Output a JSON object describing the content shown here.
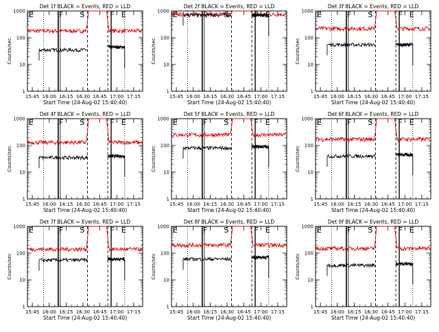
{
  "figure": {
    "xlabel": "Start Time (24-Aug-02 15:40:40)",
    "ylabel": "Counts/sec",
    "colors": {
      "events": "#000000",
      "lld": "#dd0000",
      "axis": "#000000"
    }
  },
  "chart_data": [
    {
      "type": "line",
      "title": "Det 1f BLACK = Events, RED = LLD",
      "xlabel": "Start Time (24-Aug-02 15:40:40)",
      "ylabel": "Counts/sec",
      "ylog": true,
      "ylim": [
        1,
        1000
      ],
      "xlim": [
        "15:40:40",
        "17:23:00"
      ],
      "x_ticks": [
        "15:45",
        "16:00",
        "16:15",
        "16:30",
        "16:45",
        "17:00",
        "17:15"
      ],
      "y_ticks": [
        "1",
        "10",
        "100",
        "1000"
      ],
      "markers": [
        {
          "label": "E",
          "time": "15:40:40"
        },
        {
          "label": "F",
          "time": "16:08"
        },
        {
          "label": "S",
          "time": "16:32"
        },
        {
          "label": "F",
          "time": "16:52"
        },
        {
          "label": "E",
          "time": "17:03"
        }
      ],
      "series": [
        {
          "name": "Events",
          "color": "#000000",
          "level": 35,
          "start": "15:51",
          "end": "16:34",
          "resume": "16:52",
          "resume_level": 45,
          "resume_end": "17:07"
        },
        {
          "name": "LLD",
          "color": "#dd0000",
          "level": 180,
          "peak": 1000
        }
      ]
    },
    {
      "type": "line",
      "title": "Det 2f BLACK = Events, RED = LLD",
      "xlabel": "Start Time (24-Aug-02 15:40:40)",
      "ylabel": "Counts/sec",
      "ylog": true,
      "ylim": [
        1,
        1000
      ],
      "xlim": [
        "15:40:40",
        "17:23:00"
      ],
      "x_ticks": [
        "15:45",
        "16:00",
        "16:15",
        "16:30",
        "16:45",
        "17:00",
        "17:15"
      ],
      "y_ticks": [
        "1",
        "10",
        "100",
        "1000"
      ],
      "markers": [
        {
          "label": "E",
          "time": "15:40:40"
        },
        {
          "label": "F",
          "time": "16:08"
        },
        {
          "label": "S",
          "time": "16:32"
        },
        {
          "label": "F",
          "time": "16:52"
        },
        {
          "label": "E",
          "time": "17:03"
        }
      ],
      "series": [
        {
          "name": "Events",
          "color": "#000000",
          "level": 700,
          "start": "15:51",
          "end": "16:34",
          "resume": "16:52",
          "resume_level": 700,
          "resume_end": "17:07"
        },
        {
          "name": "LLD",
          "color": "#dd0000",
          "level": 750,
          "peak": 1000
        }
      ]
    },
    {
      "type": "line",
      "title": "Det 3f BLACK = Events, RED = LLD",
      "xlabel": "Start Time (24-Aug-02 15:40:40)",
      "ylabel": "Counts/sec",
      "ylog": true,
      "ylim": [
        1,
        1000
      ],
      "xlim": [
        "15:40:40",
        "17:23:00"
      ],
      "x_ticks": [
        "15:45",
        "16:00",
        "16:15",
        "16:30",
        "16:45",
        "17:00",
        "17:15"
      ],
      "y_ticks": [
        "1",
        "10",
        "100",
        "1000"
      ],
      "markers": [
        {
          "label": "E",
          "time": "15:40:40"
        },
        {
          "label": "F",
          "time": "16:08"
        },
        {
          "label": "S",
          "time": "16:32"
        },
        {
          "label": "F",
          "time": "16:52"
        },
        {
          "label": "E",
          "time": "17:03"
        }
      ],
      "series": [
        {
          "name": "Events",
          "color": "#000000",
          "level": 55,
          "start": "15:51",
          "end": "16:34",
          "resume": "16:52",
          "resume_level": 55,
          "resume_end": "17:07"
        },
        {
          "name": "LLD",
          "color": "#dd0000",
          "level": 220,
          "peak": 1000
        }
      ]
    },
    {
      "type": "line",
      "title": "Det 4f BLACK = Events, RED = LLD",
      "xlabel": "Start Time (24-Aug-02 15:40:40)",
      "ylabel": "Counts/sec",
      "ylog": true,
      "ylim": [
        1,
        1000
      ],
      "xlim": [
        "15:40:40",
        "17:23:00"
      ],
      "x_ticks": [
        "15:45",
        "16:00",
        "16:15",
        "16:30",
        "16:45",
        "17:00",
        "17:15"
      ],
      "y_ticks": [
        "1",
        "10",
        "100",
        "1000"
      ],
      "markers": [
        {
          "label": "E",
          "time": "15:40:40"
        },
        {
          "label": "F",
          "time": "16:08"
        },
        {
          "label": "S",
          "time": "16:32"
        },
        {
          "label": "F",
          "time": "16:52"
        },
        {
          "label": "E",
          "time": "17:03"
        }
      ],
      "series": [
        {
          "name": "Events",
          "color": "#000000",
          "level": 35,
          "start": "15:51",
          "end": "16:34",
          "resume": "16:52",
          "resume_level": 40,
          "resume_end": "17:07"
        },
        {
          "name": "LLD",
          "color": "#dd0000",
          "level": 130,
          "peak": 1000
        }
      ]
    },
    {
      "type": "line",
      "title": "Det 5f BLACK = Events, RED = LLD",
      "xlabel": "Start Time (24-Aug-02 15:40:40)",
      "ylabel": "Counts/sec",
      "ylog": true,
      "ylim": [
        1,
        1000
      ],
      "xlim": [
        "15:40:40",
        "17:23:00"
      ],
      "x_ticks": [
        "15:45",
        "16:00",
        "16:15",
        "16:30",
        "16:45",
        "17:00",
        "17:15"
      ],
      "y_ticks": [
        "1",
        "10",
        "100",
        "1000"
      ],
      "markers": [
        {
          "label": "E",
          "time": "15:40:40"
        },
        {
          "label": "F",
          "time": "16:08"
        },
        {
          "label": "S",
          "time": "16:32"
        },
        {
          "label": "F",
          "time": "16:52"
        },
        {
          "label": "E",
          "time": "17:03"
        }
      ],
      "series": [
        {
          "name": "Events",
          "color": "#000000",
          "level": 80,
          "start": "15:51",
          "end": "16:34",
          "resume": "16:52",
          "resume_level": 90,
          "resume_end": "17:07"
        },
        {
          "name": "LLD",
          "color": "#dd0000",
          "level": 250,
          "peak": 1000
        }
      ]
    },
    {
      "type": "line",
      "title": "Det 6f BLACK = Events, RED = LLD",
      "xlabel": "Start Time (24-Aug-02 15:40:40)",
      "ylabel": "Counts/sec",
      "ylog": true,
      "ylim": [
        1,
        1000
      ],
      "xlim": [
        "15:40:40",
        "17:23:00"
      ],
      "x_ticks": [
        "15:45",
        "16:00",
        "16:15",
        "16:30",
        "16:45",
        "17:00",
        "17:15"
      ],
      "y_ticks": [
        "1",
        "10",
        "100",
        "1000"
      ],
      "markers": [
        {
          "label": "E",
          "time": "15:40:40"
        },
        {
          "label": "F",
          "time": "16:08"
        },
        {
          "label": "S",
          "time": "16:32"
        },
        {
          "label": "F",
          "time": "16:52"
        },
        {
          "label": "E",
          "time": "17:03"
        }
      ],
      "series": [
        {
          "name": "Events",
          "color": "#000000",
          "level": 40,
          "start": "15:51",
          "end": "16:34",
          "resume": "16:52",
          "resume_level": 45,
          "resume_end": "17:07"
        },
        {
          "name": "LLD",
          "color": "#dd0000",
          "level": 170,
          "peak": 1000
        }
      ]
    },
    {
      "type": "line",
      "title": "Det 7f BLACK = Events, RED = LLD",
      "xlabel": "Start Time (24-Aug-02 15:40:40)",
      "ylabel": "Counts/sec",
      "ylog": true,
      "ylim": [
        1,
        1000
      ],
      "xlim": [
        "15:40:40",
        "17:23:00"
      ],
      "x_ticks": [
        "15:45",
        "16:00",
        "16:15",
        "16:30",
        "16:45",
        "17:00",
        "17:15"
      ],
      "y_ticks": [
        "1",
        "10",
        "100",
        "1000"
      ],
      "markers": [
        {
          "label": "E",
          "time": "15:40:40"
        },
        {
          "label": "F",
          "time": "16:08"
        },
        {
          "label": "S",
          "time": "16:32"
        },
        {
          "label": "F",
          "time": "16:52"
        },
        {
          "label": "E",
          "time": "17:03"
        }
      ],
      "series": [
        {
          "name": "Events",
          "color": "#000000",
          "level": 55,
          "start": "15:51",
          "end": "16:34",
          "resume": "16:52",
          "resume_level": 60,
          "resume_end": "17:07"
        },
        {
          "name": "LLD",
          "color": "#dd0000",
          "level": 140,
          "peak": 1000
        }
      ]
    },
    {
      "type": "line",
      "title": "Det 8f BLACK = Events, RED = LLD",
      "xlabel": "Start Time (24-Aug-02 15:40:40)",
      "ylabel": "Counts/sec",
      "ylog": true,
      "ylim": [
        1,
        1000
      ],
      "xlim": [
        "15:40:40",
        "17:23:00"
      ],
      "x_ticks": [
        "15:45",
        "16:00",
        "16:15",
        "16:30",
        "16:45",
        "17:00",
        "17:15"
      ],
      "y_ticks": [
        "1",
        "10",
        "100",
        "1000"
      ],
      "markers": [
        {
          "label": "E",
          "time": "15:40:40"
        },
        {
          "label": "F",
          "time": "16:08"
        },
        {
          "label": "S",
          "time": "16:32"
        },
        {
          "label": "F",
          "time": "16:52"
        },
        {
          "label": "E",
          "time": "17:03"
        }
      ],
      "series": [
        {
          "name": "Events",
          "color": "#000000",
          "level": 60,
          "start": "15:51",
          "end": "16:34",
          "resume": "16:52",
          "resume_level": 70,
          "resume_end": "17:07"
        },
        {
          "name": "LLD",
          "color": "#dd0000",
          "level": 200,
          "peak": 1000
        }
      ]
    },
    {
      "type": "line",
      "title": "Det 9f BLACK = Events, RED = LLD",
      "xlabel": "Start Time (24-Aug-02 15:40:40)",
      "ylabel": "Counts/sec",
      "ylog": true,
      "ylim": [
        1,
        1000
      ],
      "xlim": [
        "15:40:40",
        "17:23:00"
      ],
      "x_ticks": [
        "15:45",
        "16:00",
        "16:15",
        "16:30",
        "16:45",
        "17:00",
        "17:15"
      ],
      "y_ticks": [
        "1",
        "10",
        "100",
        "1000"
      ],
      "markers": [
        {
          "label": "E",
          "time": "15:40:40"
        },
        {
          "label": "F",
          "time": "16:08"
        },
        {
          "label": "S",
          "time": "16:32"
        },
        {
          "label": "F",
          "time": "16:52"
        },
        {
          "label": "E",
          "time": "17:03"
        }
      ],
      "series": [
        {
          "name": "Events",
          "color": "#000000",
          "level": 35,
          "start": "15:51",
          "end": "16:34",
          "resume": "16:52",
          "resume_level": 40,
          "resume_end": "17:07"
        },
        {
          "name": "LLD",
          "color": "#dd0000",
          "level": 150,
          "peak": 1000
        }
      ]
    }
  ]
}
